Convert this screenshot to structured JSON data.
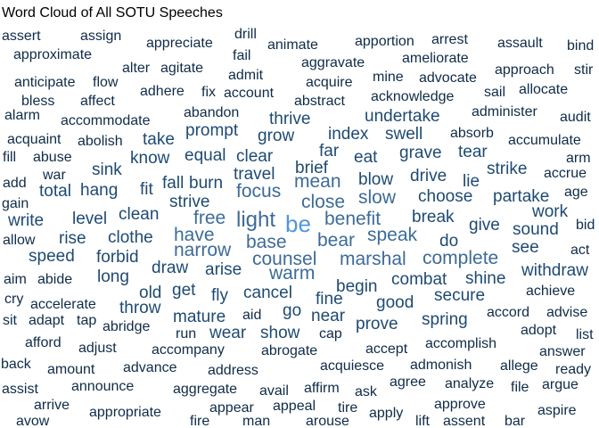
{
  "chart_data": {
    "type": "wordcloud",
    "title": "Word Cloud of All SOTU Speeches",
    "colors": {
      "dark": "#0f2b48",
      "mid": "#1e4a72",
      "light": "#3d6b98",
      "highlight": "#4f97d8"
    },
    "words": [
      {
        "text": "assert",
        "weight": 2
      },
      {
        "text": "assign",
        "weight": 2
      },
      {
        "text": "drill",
        "weight": 2
      },
      {
        "text": "bind",
        "weight": 2
      },
      {
        "text": "approximate",
        "weight": 2
      },
      {
        "text": "appreciate",
        "weight": 2
      },
      {
        "text": "animate",
        "weight": 2
      },
      {
        "text": "apportion",
        "weight": 2
      },
      {
        "text": "arrest",
        "weight": 2
      },
      {
        "text": "assault",
        "weight": 2
      },
      {
        "text": "fail",
        "weight": 2
      },
      {
        "text": "aggravate",
        "weight": 2
      },
      {
        "text": "ameliorate",
        "weight": 2
      },
      {
        "text": "alter",
        "weight": 2
      },
      {
        "text": "agitate",
        "weight": 2
      },
      {
        "text": "admit",
        "weight": 2
      },
      {
        "text": "approach",
        "weight": 2
      },
      {
        "text": "stir",
        "weight": 2
      },
      {
        "text": "anticipate",
        "weight": 2
      },
      {
        "text": "flow",
        "weight": 2
      },
      {
        "text": "acquire",
        "weight": 2
      },
      {
        "text": "mine",
        "weight": 2
      },
      {
        "text": "advocate",
        "weight": 2
      },
      {
        "text": "bless",
        "weight": 2
      },
      {
        "text": "affect",
        "weight": 2
      },
      {
        "text": "adhere",
        "weight": 2
      },
      {
        "text": "fix",
        "weight": 2
      },
      {
        "text": "account",
        "weight": 2
      },
      {
        "text": "abstract",
        "weight": 2
      },
      {
        "text": "acknowledge",
        "weight": 2
      },
      {
        "text": "sail",
        "weight": 2
      },
      {
        "text": "allocate",
        "weight": 2
      },
      {
        "text": "alarm",
        "weight": 2
      },
      {
        "text": "abandon",
        "weight": 2
      },
      {
        "text": "accommodate",
        "weight": 2
      },
      {
        "text": "thrive",
        "weight": 3
      },
      {
        "text": "undertake",
        "weight": 3
      },
      {
        "text": "administer",
        "weight": 2
      },
      {
        "text": "audit",
        "weight": 2
      },
      {
        "text": "prompt",
        "weight": 3
      },
      {
        "text": "absorb",
        "weight": 2
      },
      {
        "text": "acquaint",
        "weight": 2
      },
      {
        "text": "abolish",
        "weight": 2
      },
      {
        "text": "take",
        "weight": 3
      },
      {
        "text": "grow",
        "weight": 3
      },
      {
        "text": "index",
        "weight": 3
      },
      {
        "text": "swell",
        "weight": 3
      },
      {
        "text": "accumulate",
        "weight": 2
      },
      {
        "text": "far",
        "weight": 3
      },
      {
        "text": "tear",
        "weight": 3
      },
      {
        "text": "fill",
        "weight": 2
      },
      {
        "text": "abuse",
        "weight": 2
      },
      {
        "text": "know",
        "weight": 3
      },
      {
        "text": "equal",
        "weight": 3
      },
      {
        "text": "clear",
        "weight": 3
      },
      {
        "text": "eat",
        "weight": 3
      },
      {
        "text": "grave",
        "weight": 3
      },
      {
        "text": "arm",
        "weight": 2
      },
      {
        "text": "war",
        "weight": 2
      },
      {
        "text": "sink",
        "weight": 3
      },
      {
        "text": "travel",
        "weight": 3
      },
      {
        "text": "brief",
        "weight": 3
      },
      {
        "text": "strike",
        "weight": 3
      },
      {
        "text": "accrue",
        "weight": 2
      },
      {
        "text": "add",
        "weight": 2
      },
      {
        "text": "fall",
        "weight": 3
      },
      {
        "text": "mean",
        "weight": 4
      },
      {
        "text": "blow",
        "weight": 3
      },
      {
        "text": "drive",
        "weight": 3
      },
      {
        "text": "lie",
        "weight": 3
      },
      {
        "text": "age",
        "weight": 2
      },
      {
        "text": "total",
        "weight": 3
      },
      {
        "text": "hang",
        "weight": 3
      },
      {
        "text": "fit",
        "weight": 3
      },
      {
        "text": "burn",
        "weight": 3
      },
      {
        "text": "focus",
        "weight": 4
      },
      {
        "text": "choose",
        "weight": 3
      },
      {
        "text": "partake",
        "weight": 3
      },
      {
        "text": "gain",
        "weight": 2
      },
      {
        "text": "strive",
        "weight": 3
      },
      {
        "text": "close",
        "weight": 4
      },
      {
        "text": "slow",
        "weight": 4
      },
      {
        "text": "work",
        "weight": 3
      },
      {
        "text": "clean",
        "weight": 3
      },
      {
        "text": "write",
        "weight": 3
      },
      {
        "text": "level",
        "weight": 3
      },
      {
        "text": "free",
        "weight": 4
      },
      {
        "text": "light",
        "weight": 5
      },
      {
        "text": "be",
        "weight": 6
      },
      {
        "text": "benefit",
        "weight": 4
      },
      {
        "text": "break",
        "weight": 3
      },
      {
        "text": "give",
        "weight": 3
      },
      {
        "text": "sound",
        "weight": 3
      },
      {
        "text": "bid",
        "weight": 2
      },
      {
        "text": "allow",
        "weight": 2
      },
      {
        "text": "rise",
        "weight": 3
      },
      {
        "text": "clothe",
        "weight": 3
      },
      {
        "text": "have",
        "weight": 4
      },
      {
        "text": "base",
        "weight": 4
      },
      {
        "text": "bear",
        "weight": 4
      },
      {
        "text": "speak",
        "weight": 4
      },
      {
        "text": "do",
        "weight": 3
      },
      {
        "text": "see",
        "weight": 3
      },
      {
        "text": "speed",
        "weight": 3
      },
      {
        "text": "forbid",
        "weight": 3
      },
      {
        "text": "narrow",
        "weight": 4
      },
      {
        "text": "counsel",
        "weight": 4
      },
      {
        "text": "marshal",
        "weight": 4
      },
      {
        "text": "complete",
        "weight": 4
      },
      {
        "text": "act",
        "weight": 2
      },
      {
        "text": "aim",
        "weight": 2
      },
      {
        "text": "abide",
        "weight": 2
      },
      {
        "text": "long",
        "weight": 3
      },
      {
        "text": "draw",
        "weight": 3
      },
      {
        "text": "arise",
        "weight": 3
      },
      {
        "text": "warm",
        "weight": 4
      },
      {
        "text": "shine",
        "weight": 3
      },
      {
        "text": "withdraw",
        "weight": 3
      },
      {
        "text": "combat",
        "weight": 3
      },
      {
        "text": "begin",
        "weight": 3
      },
      {
        "text": "cry",
        "weight": 2
      },
      {
        "text": "old",
        "weight": 3
      },
      {
        "text": "get",
        "weight": 3
      },
      {
        "text": "fly",
        "weight": 3
      },
      {
        "text": "cancel",
        "weight": 3
      },
      {
        "text": "fine",
        "weight": 3
      },
      {
        "text": "good",
        "weight": 3
      },
      {
        "text": "secure",
        "weight": 3
      },
      {
        "text": "achieve",
        "weight": 2
      },
      {
        "text": "accelerate",
        "weight": 2
      },
      {
        "text": "throw",
        "weight": 3
      },
      {
        "text": "go",
        "weight": 3
      },
      {
        "text": "sit",
        "weight": 2
      },
      {
        "text": "adapt",
        "weight": 2
      },
      {
        "text": "tap",
        "weight": 2
      },
      {
        "text": "mature",
        "weight": 3
      },
      {
        "text": "aid",
        "weight": 2
      },
      {
        "text": "near",
        "weight": 3
      },
      {
        "text": "spring",
        "weight": 3
      },
      {
        "text": "accord",
        "weight": 2
      },
      {
        "text": "advise",
        "weight": 2
      },
      {
        "text": "abridge",
        "weight": 2
      },
      {
        "text": "prove",
        "weight": 3
      },
      {
        "text": "adopt",
        "weight": 2
      },
      {
        "text": "run",
        "weight": 2
      },
      {
        "text": "wear",
        "weight": 3
      },
      {
        "text": "show",
        "weight": 3
      },
      {
        "text": "cap",
        "weight": 2
      },
      {
        "text": "list",
        "weight": 2
      },
      {
        "text": "afford",
        "weight": 2
      },
      {
        "text": "adjust",
        "weight": 2
      },
      {
        "text": "accompany",
        "weight": 2
      },
      {
        "text": "accomplish",
        "weight": 2
      },
      {
        "text": "abrogate",
        "weight": 2
      },
      {
        "text": "accept",
        "weight": 2
      },
      {
        "text": "answer",
        "weight": 2
      },
      {
        "text": "back",
        "weight": 2
      },
      {
        "text": "amount",
        "weight": 2
      },
      {
        "text": "advance",
        "weight": 2
      },
      {
        "text": "address",
        "weight": 2
      },
      {
        "text": "acquiesce",
        "weight": 2
      },
      {
        "text": "admonish",
        "weight": 2
      },
      {
        "text": "allege",
        "weight": 2
      },
      {
        "text": "ready",
        "weight": 2
      },
      {
        "text": "assist",
        "weight": 2
      },
      {
        "text": "announce",
        "weight": 2
      },
      {
        "text": "aggregate",
        "weight": 2
      },
      {
        "text": "avail",
        "weight": 2
      },
      {
        "text": "affirm",
        "weight": 2
      },
      {
        "text": "ask",
        "weight": 2
      },
      {
        "text": "agree",
        "weight": 2
      },
      {
        "text": "analyze",
        "weight": 2
      },
      {
        "text": "file",
        "weight": 2
      },
      {
        "text": "argue",
        "weight": 2
      },
      {
        "text": "arrive",
        "weight": 2
      },
      {
        "text": "appropriate",
        "weight": 2
      },
      {
        "text": "appear",
        "weight": 2
      },
      {
        "text": "appeal",
        "weight": 2
      },
      {
        "text": "tire",
        "weight": 2
      },
      {
        "text": "approve",
        "weight": 2
      },
      {
        "text": "aspire",
        "weight": 2
      },
      {
        "text": "avow",
        "weight": 2
      },
      {
        "text": "fire",
        "weight": 2
      },
      {
        "text": "man",
        "weight": 2
      },
      {
        "text": "arouse",
        "weight": 2
      },
      {
        "text": "apply",
        "weight": 2
      },
      {
        "text": "lift",
        "weight": 2
      },
      {
        "text": "assent",
        "weight": 2
      },
      {
        "text": "bar",
        "weight": 2
      }
    ]
  }
}
